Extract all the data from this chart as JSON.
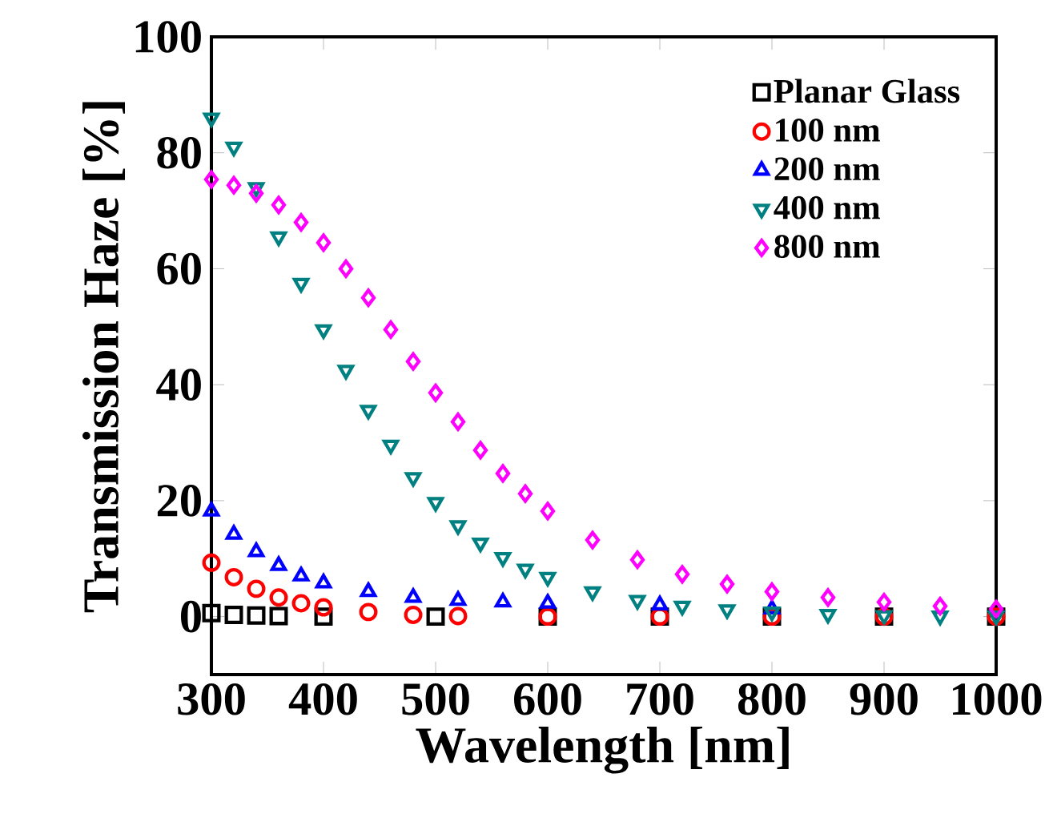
{
  "chart_data": {
    "type": "scatter",
    "xlabel": "Wavelength [nm]",
    "ylabel": "Transmission Haze [%]",
    "xlim": [
      300,
      1000
    ],
    "ylim": [
      -10,
      100
    ],
    "xticks": [
      300,
      400,
      500,
      600,
      700,
      800,
      900,
      1000
    ],
    "yticks": [
      0,
      20,
      40,
      60,
      80,
      100
    ],
    "legend": "top right",
    "grid": false,
    "series": [
      {
        "name": "Planar Glass",
        "color": "#000000",
        "marker": "square",
        "x": [
          300,
          320,
          340,
          360,
          400,
          500,
          600,
          700,
          800,
          900,
          1000
        ],
        "values": [
          0.6,
          0.3,
          0.2,
          0.1,
          0,
          0,
          0,
          0,
          0,
          0,
          0
        ]
      },
      {
        "name": "100 nm",
        "color": "#ff0000",
        "marker": "circle",
        "x": [
          300,
          320,
          340,
          360,
          380,
          400,
          440,
          480,
          520,
          600,
          700,
          800,
          900,
          1000
        ],
        "values": [
          9.3,
          6.8,
          4.8,
          3.3,
          2.3,
          1.6,
          0.8,
          0.3,
          0.1,
          0,
          0,
          0,
          0,
          0
        ]
      },
      {
        "name": "200 nm",
        "color": "#0000ff",
        "marker": "triangle",
        "x": [
          300,
          320,
          340,
          360,
          380,
          400,
          440,
          480,
          520,
          560,
          600,
          700,
          800
        ],
        "values": [
          18.2,
          14.2,
          11.2,
          8.8,
          7,
          5.8,
          4.3,
          3.3,
          2.8,
          2.5,
          2.3,
          2,
          1.3
        ]
      },
      {
        "name": "400 nm",
        "color": "#008080",
        "marker": "triangle_down",
        "x": [
          300,
          320,
          340,
          360,
          380,
          400,
          420,
          440,
          460,
          480,
          500,
          520,
          540,
          560,
          580,
          600,
          640,
          680,
          720,
          760,
          800,
          850,
          900,
          950,
          1000
        ],
        "values": [
          86,
          81,
          74,
          65.5,
          57.5,
          49.5,
          42.5,
          35.6,
          29.6,
          24,
          19.7,
          15.7,
          12.7,
          10.2,
          8.2,
          6.8,
          4.3,
          2.8,
          1.8,
          1.2,
          0.8,
          0.4,
          0.2,
          0.1,
          0.1
        ]
      },
      {
        "name": "800 nm",
        "color": "#ff00ff",
        "marker": "diamond",
        "x": [
          300,
          320,
          340,
          360,
          380,
          400,
          420,
          440,
          460,
          480,
          500,
          520,
          540,
          560,
          580,
          600,
          640,
          680,
          720,
          760,
          800,
          850,
          900,
          950,
          1000
        ],
        "values": [
          75.4,
          74.4,
          73,
          71,
          68,
          64.5,
          60,
          55,
          49.5,
          44,
          38.6,
          33.6,
          28.7,
          24.7,
          21.2,
          18.2,
          13.2,
          9.8,
          7.3,
          5.6,
          4.3,
          3.3,
          2.5,
          1.8,
          1.3
        ]
      }
    ]
  }
}
